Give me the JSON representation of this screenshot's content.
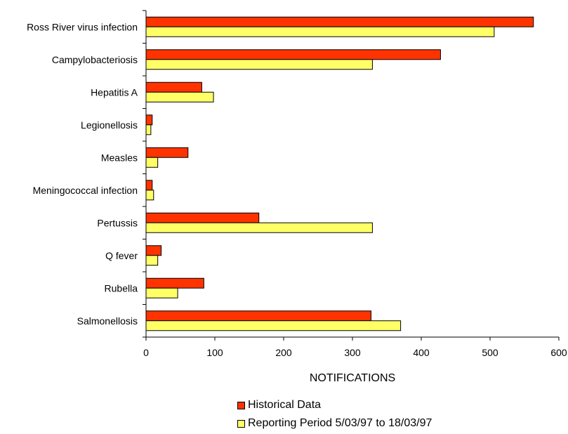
{
  "chart_data": {
    "type": "bar",
    "orientation": "horizontal",
    "categories": [
      "Ross River virus infection",
      "Campylobacteriosis",
      "Hepatitis A",
      "Legionellosis",
      "Measles",
      "Meningococcal infection",
      "Pertussis",
      "Q fever",
      "Rubella",
      "Salmonellosis"
    ],
    "series": [
      {
        "name": "Historical Data",
        "color": "#ff3300",
        "values": [
          563,
          428,
          81,
          9,
          61,
          9,
          164,
          22,
          84,
          327
        ]
      },
      {
        "name": "Reporting Period 5/03/97 to 18/03/97",
        "color": "#ffff66",
        "values": [
          506,
          329,
          98,
          7,
          17,
          11,
          329,
          17,
          46,
          370
        ]
      }
    ],
    "xlabel": "NOTIFICATIONS",
    "xlim": [
      0,
      600
    ],
    "xticks": [
      "0",
      "100",
      "200",
      "300",
      "400",
      "500",
      "600"
    ],
    "grid": false,
    "legend_position": "bottom"
  }
}
